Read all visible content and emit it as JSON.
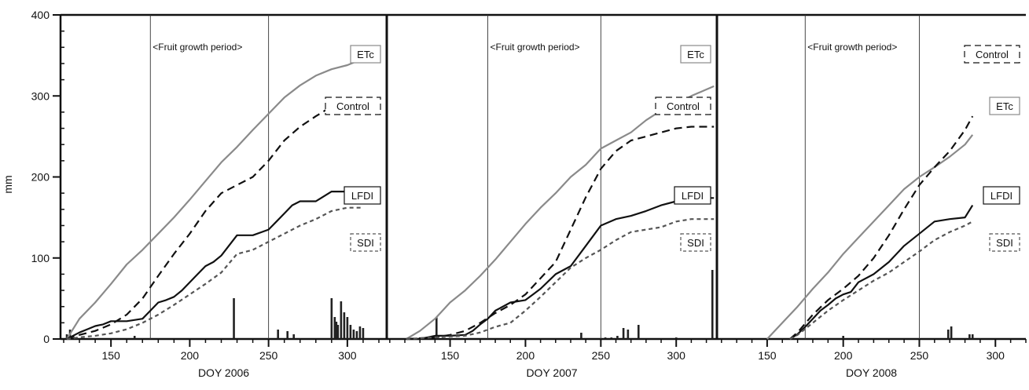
{
  "shared": {
    "ylabel": "mm",
    "y_ticks": [
      0,
      100,
      200,
      300,
      400
    ],
    "ylim": [
      0,
      400
    ],
    "annotation": "<Fruit growth period>",
    "growth_period_lines": [
      175,
      250
    ],
    "colors": {
      "ETc": "#8a8a8a",
      "Control": "#111111",
      "LFDI": "#111111",
      "SDI": "#555555",
      "rain": "#222222"
    }
  },
  "chart_data": [
    {
      "type": "line",
      "xlabel": "DOY 2006",
      "xlim": [
        118,
        325
      ],
      "x_ticks": [
        150,
        200,
        250,
        300
      ],
      "series": [
        {
          "name": "ETc",
          "x": [
            122,
            130,
            140,
            150,
            160,
            170,
            180,
            190,
            200,
            210,
            220,
            230,
            240,
            250,
            260,
            270,
            280,
            290,
            300,
            305,
            310
          ],
          "values": [
            0,
            25,
            45,
            68,
            92,
            110,
            130,
            150,
            172,
            195,
            218,
            237,
            258,
            278,
            298,
            313,
            325,
            333,
            338,
            342,
            346
          ]
        },
        {
          "name": "Control",
          "x": [
            122,
            130,
            140,
            150,
            160,
            170,
            180,
            190,
            200,
            210,
            220,
            230,
            240,
            250,
            260,
            270,
            280,
            290,
            300,
            310
          ],
          "values": [
            0,
            5,
            10,
            18,
            30,
            50,
            78,
            105,
            130,
            158,
            180,
            190,
            200,
            220,
            245,
            262,
            275,
            287,
            290,
            290
          ]
        },
        {
          "name": "LFDI",
          "x": [
            122,
            130,
            135,
            140,
            145,
            150,
            160,
            170,
            175,
            180,
            185,
            190,
            195,
            200,
            205,
            210,
            215,
            220,
            230,
            240,
            250,
            255,
            260,
            265,
            270,
            280,
            290,
            300,
            310
          ],
          "values": [
            0,
            8,
            12,
            16,
            18,
            22,
            22,
            25,
            35,
            45,
            48,
            52,
            60,
            70,
            80,
            90,
            95,
            103,
            128,
            128,
            135,
            145,
            155,
            165,
            170,
            170,
            182,
            182,
            182
          ]
        },
        {
          "name": "SDI",
          "x": [
            122,
            130,
            140,
            150,
            160,
            170,
            180,
            190,
            200,
            210,
            220,
            230,
            240,
            250,
            260,
            270,
            280,
            290,
            300,
            310
          ],
          "values": [
            0,
            2,
            4,
            7,
            12,
            20,
            30,
            42,
            55,
            68,
            82,
            105,
            110,
            120,
            130,
            140,
            148,
            158,
            162,
            162
          ]
        }
      ],
      "rain": {
        "x": [
          122,
          124,
          165,
          228,
          256,
          262,
          266,
          290,
          292,
          293,
          294,
          296,
          298,
          300,
          302,
          304,
          306,
          308,
          310
        ],
        "values": [
          6,
          12,
          4,
          52,
          12,
          10,
          6,
          52,
          28,
          22,
          18,
          48,
          34,
          28,
          18,
          12,
          10,
          16,
          14
        ]
      },
      "legend": [
        {
          "series": "ETc",
          "label": "ETc",
          "pos": "top"
        },
        {
          "series": "Control",
          "label": "Control",
          "pos": "upper"
        },
        {
          "series": "LFDI",
          "label": "LFDI",
          "pos": "middle"
        },
        {
          "series": "SDI",
          "label": "SDI",
          "pos": "lower"
        }
      ]
    },
    {
      "type": "line",
      "xlabel": "DOY 2007",
      "xlim": [
        108,
        327
      ],
      "x_ticks": [
        150,
        200,
        250,
        300
      ],
      "series": [
        {
          "name": "ETc",
          "x": [
            121,
            130,
            140,
            150,
            160,
            170,
            180,
            190,
            200,
            210,
            220,
            230,
            240,
            250,
            260,
            270,
            280,
            290,
            300,
            310,
            320,
            325
          ],
          "values": [
            0,
            10,
            25,
            45,
            60,
            78,
            98,
            120,
            142,
            162,
            180,
            200,
            215,
            235,
            245,
            255,
            270,
            282,
            290,
            300,
            308,
            312
          ]
        },
        {
          "name": "Control",
          "x": [
            121,
            140,
            150,
            160,
            170,
            180,
            190,
            200,
            210,
            220,
            230,
            240,
            250,
            260,
            270,
            280,
            290,
            300,
            310,
            320,
            325
          ],
          "values": [
            0,
            2,
            5,
            10,
            20,
            32,
            42,
            55,
            75,
            95,
            135,
            175,
            210,
            232,
            245,
            250,
            255,
            260,
            262,
            262,
            262
          ]
        },
        {
          "name": "LFDI",
          "x": [
            121,
            130,
            140,
            150,
            160,
            165,
            170,
            175,
            180,
            190,
            200,
            205,
            210,
            220,
            230,
            240,
            250,
            260,
            270,
            280,
            290,
            300,
            310,
            320,
            325
          ],
          "values": [
            0,
            0,
            4,
            4,
            5,
            10,
            18,
            25,
            35,
            45,
            48,
            55,
            62,
            80,
            90,
            115,
            140,
            148,
            152,
            158,
            165,
            170,
            174,
            174,
            174
          ]
        },
        {
          "name": "SDI",
          "x": [
            121,
            140,
            150,
            160,
            170,
            180,
            190,
            200,
            210,
            220,
            230,
            240,
            250,
            260,
            270,
            280,
            290,
            300,
            310,
            320,
            325
          ],
          "values": [
            0,
            2,
            3,
            4,
            8,
            15,
            20,
            35,
            52,
            70,
            88,
            100,
            110,
            122,
            132,
            135,
            138,
            145,
            148,
            148,
            148
          ]
        }
      ],
      "rain": {
        "x": [
          141,
          237,
          253,
          257,
          261,
          265,
          268,
          275,
          300,
          324
        ],
        "values": [
          28,
          8,
          2,
          2,
          4,
          14,
          12,
          18,
          2,
          88
        ]
      },
      "legend": [
        {
          "series": "ETc",
          "label": "ETc",
          "pos": "top"
        },
        {
          "series": "Control",
          "label": "Control",
          "pos": "upper"
        },
        {
          "series": "LFDI",
          "label": "LFDI",
          "pos": "middle"
        },
        {
          "series": "SDI",
          "label": "SDI",
          "pos": "lower"
        }
      ]
    },
    {
      "type": "line",
      "xlabel": "DOY 2008",
      "xlim": [
        117,
        320
      ],
      "x_ticks": [
        150,
        200,
        250,
        300
      ],
      "series": [
        {
          "name": "ETc",
          "x": [
            150,
            160,
            170,
            180,
            190,
            200,
            210,
            220,
            230,
            240,
            250,
            260,
            270,
            280,
            285
          ],
          "values": [
            0,
            20,
            40,
            62,
            82,
            105,
            125,
            145,
            165,
            185,
            200,
            212,
            225,
            240,
            252
          ]
        },
        {
          "name": "Control",
          "x": [
            165,
            170,
            180,
            190,
            200,
            210,
            220,
            230,
            240,
            250,
            260,
            270,
            280,
            285
          ],
          "values": [
            0,
            8,
            30,
            48,
            62,
            78,
            100,
            128,
            160,
            190,
            212,
            232,
            258,
            275
          ]
        },
        {
          "name": "LFDI",
          "x": [
            165,
            170,
            175,
            180,
            185,
            190,
            195,
            200,
            205,
            210,
            220,
            230,
            240,
            250,
            260,
            270,
            280,
            285
          ],
          "values": [
            0,
            6,
            15,
            25,
            35,
            42,
            50,
            55,
            58,
            70,
            80,
            95,
            115,
            130,
            145,
            148,
            150,
            165
          ]
        },
        {
          "name": "SDI",
          "x": [
            165,
            170,
            180,
            190,
            200,
            210,
            220,
            230,
            240,
            250,
            260,
            270,
            280,
            285
          ],
          "values": [
            0,
            5,
            20,
            35,
            48,
            60,
            72,
            82,
            95,
            108,
            122,
            132,
            140,
            145
          ]
        }
      ],
      "rain": {
        "x": [
          200,
          269,
          271,
          283,
          285
        ],
        "values": [
          4,
          12,
          16,
          6,
          6
        ]
      },
      "legend": [
        {
          "series": "Control",
          "label": "Control",
          "pos": "top"
        },
        {
          "series": "ETc",
          "label": "ETc",
          "pos": "upper"
        },
        {
          "series": "LFDI",
          "label": "LFDI",
          "pos": "middle"
        },
        {
          "series": "SDI",
          "label": "SDI",
          "pos": "lower"
        }
      ]
    }
  ]
}
